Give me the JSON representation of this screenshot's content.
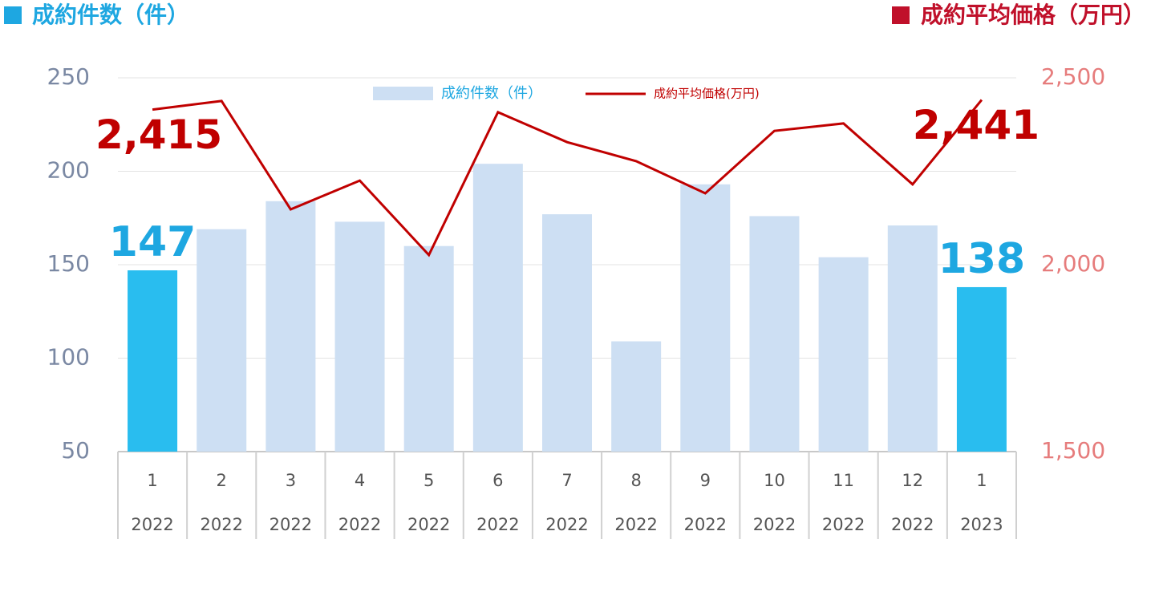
{
  "chart_data": {
    "type": "bar-line",
    "header_left": "成約件数（件）",
    "header_right": "成約平均価格（万円）",
    "categories": [
      [
        "1",
        "2022"
      ],
      [
        "2",
        "2022"
      ],
      [
        "3",
        "2022"
      ],
      [
        "4",
        "2022"
      ],
      [
        "5",
        "2022"
      ],
      [
        "6",
        "2022"
      ],
      [
        "7",
        "2022"
      ],
      [
        "8",
        "2022"
      ],
      [
        "9",
        "2022"
      ],
      [
        "10",
        "2022"
      ],
      [
        "11",
        "2022"
      ],
      [
        "12",
        "2022"
      ],
      [
        "1",
        "2023"
      ]
    ],
    "series": [
      {
        "name": "成約件数（件）",
        "type": "bar",
        "color": "#cddff3",
        "colors": [
          "#29bdef",
          "#cddff3",
          "#cddff3",
          "#cddff3",
          "#cddff3",
          "#cddff3",
          "#cddff3",
          "#cddff3",
          "#cddff3",
          "#cddff3",
          "#cddff3",
          "#cddff3",
          "#29bdef"
        ],
        "values": [
          147,
          169,
          184,
          173,
          160,
          204,
          177,
          109,
          193,
          176,
          154,
          171,
          138
        ],
        "value_labels": [
          "147",
          null,
          null,
          null,
          null,
          null,
          null,
          null,
          null,
          null,
          null,
          null,
          "138"
        ]
      },
      {
        "name": "成約平均価格(万円)",
        "type": "line",
        "axis": "y2",
        "color": "#c00000",
        "values": [
          2415,
          2438,
          2148,
          2225,
          2026,
          2408,
          2328,
          2277,
          2191,
          2358,
          2378,
          2215,
          2441
        ],
        "value_labels": [
          "2,415",
          null,
          null,
          null,
          null,
          null,
          null,
          null,
          null,
          null,
          null,
          null,
          "2,441"
        ]
      }
    ],
    "ylim": [
      50,
      250
    ],
    "yticks": [
      50,
      100,
      150,
      200,
      250
    ],
    "y2lim": [
      1500,
      2500
    ],
    "y2ticks": [
      {
        "value": 1500,
        "label": "1,500"
      },
      {
        "value": 2000,
        "label": "2,000"
      },
      {
        "value": 2500,
        "label": "2,500"
      }
    ],
    "grid": true
  }
}
